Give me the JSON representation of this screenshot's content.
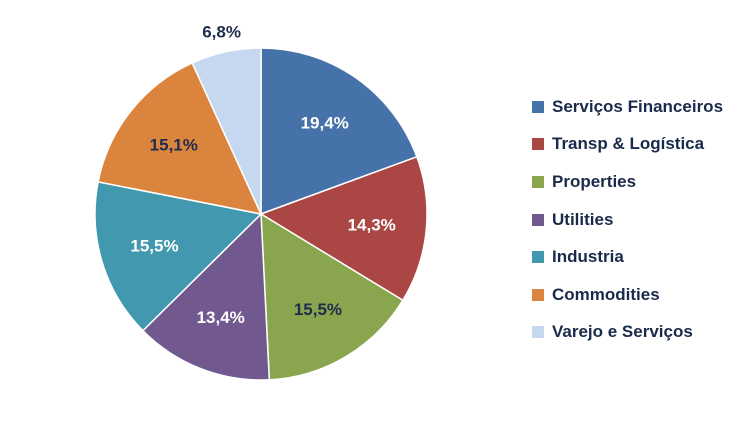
{
  "chart_data": {
    "type": "pie",
    "categories": [
      "Serviços Financeiros",
      "Transp & Logística",
      "Properties",
      "Utilities",
      "Industria",
      "Commodities",
      "Varejo e Serviços"
    ],
    "values": [
      19.4,
      14.3,
      15.5,
      13.4,
      15.5,
      15.1,
      6.8
    ],
    "labels": [
      "19,4%",
      "14,3%",
      "15,5%",
      "13,4%",
      "15,5%",
      "15,1%",
      "6,8%"
    ],
    "colors": [
      "#4672aa",
      "#aa4643",
      "#89a54e",
      "#71588f",
      "#4198af",
      "#db843d",
      "#c6d8ef"
    ],
    "label_colors": [
      "#ffffff",
      "#ffffff",
      "#1f2d4d",
      "#ffffff",
      "#ffffff",
      "#1f2d4d",
      "#1f2d4d"
    ],
    "start_angle": "12 o'clock",
    "direction": "clockwise",
    "legend_position": "right"
  }
}
